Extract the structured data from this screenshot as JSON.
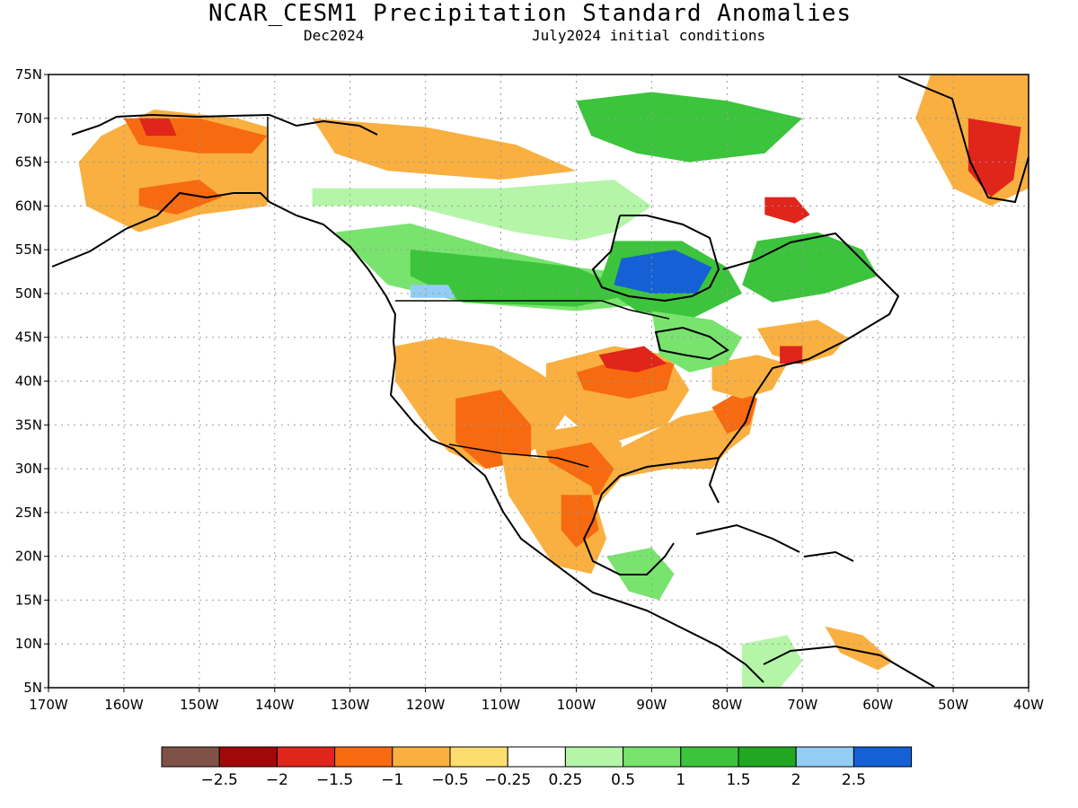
{
  "title": "NCAR_CESM1 Precipitation Standard Anomalies",
  "subtitle_left": "Dec2024",
  "subtitle_right": "July2024 initial conditions",
  "map": {
    "lon_range": [
      -170,
      -40
    ],
    "lat_range": [
      5,
      75
    ],
    "lat_ticks": [
      {
        "value": 75,
        "label": "75N"
      },
      {
        "value": 70,
        "label": "70N"
      },
      {
        "value": 65,
        "label": "65N"
      },
      {
        "value": 60,
        "label": "60N"
      },
      {
        "value": 55,
        "label": "55N"
      },
      {
        "value": 50,
        "label": "50N"
      },
      {
        "value": 45,
        "label": "45N"
      },
      {
        "value": 40,
        "label": "40N"
      },
      {
        "value": 35,
        "label": "35N"
      },
      {
        "value": 30,
        "label": "30N"
      },
      {
        "value": 25,
        "label": "25N"
      },
      {
        "value": 20,
        "label": "20N"
      },
      {
        "value": 15,
        "label": "15N"
      },
      {
        "value": 10,
        "label": "10N"
      },
      {
        "value": 5,
        "label": "5N"
      }
    ],
    "lon_ticks": [
      {
        "value": -170,
        "label": "170W"
      },
      {
        "value": -160,
        "label": "160W"
      },
      {
        "value": -150,
        "label": "150W"
      },
      {
        "value": -140,
        "label": "140W"
      },
      {
        "value": -130,
        "label": "130W"
      },
      {
        "value": -120,
        "label": "120W"
      },
      {
        "value": -110,
        "label": "110W"
      },
      {
        "value": -100,
        "label": "100W"
      },
      {
        "value": -90,
        "label": "90W"
      },
      {
        "value": -80,
        "label": "80W"
      },
      {
        "value": -70,
        "label": "70W"
      },
      {
        "value": -60,
        "label": "60W"
      },
      {
        "value": -50,
        "label": "50W"
      },
      {
        "value": -40,
        "label": "40W"
      }
    ],
    "anomaly_regions": [
      {
        "name": "alaska",
        "color": "#f9b040",
        "poly": [
          [
            -163,
            68
          ],
          [
            -156,
            71
          ],
          [
            -145,
            70
          ],
          [
            -141,
            69
          ],
          [
            -141,
            60
          ],
          [
            -150,
            59
          ],
          [
            -158,
            57
          ],
          [
            -165,
            60
          ],
          [
            -166,
            65
          ]
        ]
      },
      {
        "name": "alaska-core",
        "color": "#f86a0f",
        "poly": [
          [
            -160,
            70
          ],
          [
            -150,
            70
          ],
          [
            -141,
            68
          ],
          [
            -143,
            66
          ],
          [
            -150,
            66
          ],
          [
            -158,
            67
          ]
        ]
      },
      {
        "name": "alaska-red",
        "color": "#e0251b",
        "poly": [
          [
            -158,
            70
          ],
          [
            -154,
            70
          ],
          [
            -153,
            68
          ],
          [
            -157,
            68
          ]
        ]
      },
      {
        "name": "alaska-south",
        "color": "#f86a0f",
        "poly": [
          [
            -158,
            62
          ],
          [
            -150,
            63
          ],
          [
            -147,
            61
          ],
          [
            -153,
            59
          ],
          [
            -158,
            60
          ]
        ]
      },
      {
        "name": "yukon-white",
        "color": "#ffffff",
        "poly": [
          [
            -140,
            69
          ],
          [
            -130,
            68
          ],
          [
            -125,
            65
          ],
          [
            -130,
            62
          ],
          [
            -138,
            62
          ],
          [
            -141,
            65
          ]
        ]
      },
      {
        "name": "nw-canada",
        "color": "#f9b040",
        "poly": [
          [
            -135,
            70
          ],
          [
            -120,
            69
          ],
          [
            -108,
            67
          ],
          [
            -100,
            64
          ],
          [
            -110,
            63
          ],
          [
            -125,
            64
          ],
          [
            -132,
            66
          ]
        ]
      },
      {
        "name": "canada-light-green",
        "color": "#b4f5a8",
        "poly": [
          [
            -135,
            60
          ],
          [
            -122,
            60
          ],
          [
            -108,
            57
          ],
          [
            -100,
            56
          ],
          [
            -95,
            57
          ],
          [
            -90,
            60
          ],
          [
            -95,
            63
          ],
          [
            -110,
            62
          ],
          [
            -125,
            62
          ],
          [
            -135,
            62
          ]
        ]
      },
      {
        "name": "canada-green",
        "color": "#78e46e",
        "poly": [
          [
            -132,
            57
          ],
          [
            -122,
            58
          ],
          [
            -110,
            55
          ],
          [
            -100,
            53
          ],
          [
            -90,
            52
          ],
          [
            -85,
            55
          ],
          [
            -88,
            49
          ],
          [
            -100,
            48
          ],
          [
            -115,
            49
          ],
          [
            -125,
            51
          ]
        ]
      },
      {
        "name": "prairie-green",
        "color": "#3cc43c",
        "poly": [
          [
            -122,
            55
          ],
          [
            -110,
            54
          ],
          [
            -100,
            53
          ],
          [
            -92,
            50
          ],
          [
            -100,
            48.5
          ],
          [
            -115,
            49
          ],
          [
            -122,
            52
          ]
        ]
      },
      {
        "name": "arctic-green",
        "color": "#3cc43c",
        "poly": [
          [
            -100,
            72
          ],
          [
            -90,
            73
          ],
          [
            -80,
            72
          ],
          [
            -70,
            70
          ],
          [
            -75,
            66
          ],
          [
            -85,
            65
          ],
          [
            -92,
            66
          ],
          [
            -98,
            68
          ]
        ]
      },
      {
        "name": "ontario-green",
        "color": "#3cc43c",
        "poly": [
          [
            -95,
            56
          ],
          [
            -86,
            56
          ],
          [
            -80,
            53
          ],
          [
            -78,
            50
          ],
          [
            -85,
            47
          ],
          [
            -92,
            48
          ],
          [
            -97,
            51
          ]
        ]
      },
      {
        "name": "ontario-blue",
        "color": "#1560d4",
        "poly": [
          [
            -94,
            54
          ],
          [
            -87,
            55
          ],
          [
            -82,
            53
          ],
          [
            -84,
            50
          ],
          [
            -90,
            50
          ],
          [
            -95,
            51
          ]
        ]
      },
      {
        "name": "quebec-green",
        "color": "#3cc43c",
        "poly": [
          [
            -76,
            56
          ],
          [
            -68,
            57
          ],
          [
            -62,
            55
          ],
          [
            -60,
            52
          ],
          [
            -67,
            50
          ],
          [
            -74,
            49
          ],
          [
            -78,
            51
          ]
        ]
      },
      {
        "name": "quebec-red",
        "color": "#e0251b",
        "poly": [
          [
            -75,
            61
          ],
          [
            -71,
            61
          ],
          [
            -69,
            59
          ],
          [
            -71,
            58
          ],
          [
            -75,
            59
          ]
        ]
      },
      {
        "name": "bc-blue",
        "color": "#93cdf5",
        "poly": [
          [
            -122,
            51
          ],
          [
            -117,
            51
          ],
          [
            -116,
            49.5
          ],
          [
            -122,
            49.5
          ]
        ]
      },
      {
        "name": "greenland",
        "color": "#f9b040",
        "poly": [
          [
            -53,
            75
          ],
          [
            -40,
            75
          ],
          [
            -40,
            62
          ],
          [
            -45,
            60
          ],
          [
            -50,
            62
          ],
          [
            -55,
            70
          ]
        ]
      },
      {
        "name": "greenland-red",
        "color": "#e0251b",
        "poly": [
          [
            -48,
            70
          ],
          [
            -41,
            69
          ],
          [
            -42,
            63
          ],
          [
            -45,
            61
          ],
          [
            -48,
            64
          ]
        ]
      },
      {
        "name": "us-west",
        "color": "#f9b040",
        "poly": [
          [
            -124,
            44
          ],
          [
            -118,
            45
          ],
          [
            -111,
            44
          ],
          [
            -105,
            41
          ],
          [
            -100,
            38
          ],
          [
            -104,
            33
          ],
          [
            -108,
            31
          ],
          [
            -112,
            30
          ],
          [
            -117,
            32
          ],
          [
            -120,
            35
          ],
          [
            -124,
            40
          ]
        ]
      },
      {
        "name": "southwest-red",
        "color": "#e0251b",
        "poly": [
          [
            -114,
            36
          ],
          [
            -109,
            37
          ],
          [
            -106,
            34
          ],
          [
            -108,
            31
          ],
          [
            -112,
            31
          ],
          [
            -114,
            33
          ]
        ]
      },
      {
        "name": "southwest-orange",
        "color": "#f86a0f",
        "poly": [
          [
            -116,
            38
          ],
          [
            -110,
            39
          ],
          [
            -106,
            35
          ],
          [
            -106,
            31
          ],
          [
            -112,
            30
          ],
          [
            -116,
            33
          ]
        ]
      },
      {
        "name": "central-orange",
        "color": "#f9b040",
        "poly": [
          [
            -104,
            42
          ],
          [
            -95,
            44
          ],
          [
            -88,
            43
          ],
          [
            -85,
            39
          ],
          [
            -88,
            35
          ],
          [
            -95,
            33
          ],
          [
            -100,
            35
          ],
          [
            -104,
            38
          ]
        ]
      },
      {
        "name": "midwest-red",
        "color": "#f86a0f",
        "poly": [
          [
            -100,
            41
          ],
          [
            -92,
            43
          ],
          [
            -87,
            42
          ],
          [
            -88,
            39
          ],
          [
            -93,
            38
          ],
          [
            -99,
            39
          ]
        ]
      },
      {
        "name": "iowa-dark",
        "color": "#e0251b",
        "poly": [
          [
            -97,
            43
          ],
          [
            -91,
            44
          ],
          [
            -88,
            42
          ],
          [
            -92,
            41
          ],
          [
            -96,
            41.5
          ]
        ]
      },
      {
        "name": "texas-orange",
        "color": "#f9b040",
        "poly": [
          [
            -106,
            34
          ],
          [
            -99,
            35
          ],
          [
            -94,
            33
          ],
          [
            -94,
            29
          ],
          [
            -97,
            26
          ],
          [
            -100,
            25
          ],
          [
            -104,
            28
          ]
        ]
      },
      {
        "name": "texas-red",
        "color": "#f86a0f",
        "poly": [
          [
            -104,
            32
          ],
          [
            -98,
            33
          ],
          [
            -95,
            30
          ],
          [
            -97,
            27
          ],
          [
            -101,
            27
          ],
          [
            -103,
            29
          ]
        ]
      },
      {
        "name": "mexico",
        "color": "#f9b040",
        "poly": [
          [
            -110,
            32
          ],
          [
            -104,
            31
          ],
          [
            -98,
            28
          ],
          [
            -96,
            22
          ],
          [
            -98,
            18
          ],
          [
            -103,
            19
          ],
          [
            -106,
            23
          ],
          [
            -109,
            27
          ]
        ]
      },
      {
        "name": "mexico-orange",
        "color": "#f86a0f",
        "poly": [
          [
            -102,
            27
          ],
          [
            -98,
            27
          ],
          [
            -97,
            23
          ],
          [
            -100,
            21
          ],
          [
            -102,
            23
          ]
        ]
      },
      {
        "name": "se-orange",
        "color": "#f9b040",
        "poly": [
          [
            -95,
            32
          ],
          [
            -86,
            36
          ],
          [
            -80,
            37
          ],
          [
            -76,
            38
          ],
          [
            -77,
            34
          ],
          [
            -80,
            32
          ],
          [
            -82,
            30
          ],
          [
            -88,
            30
          ],
          [
            -94,
            29
          ]
        ]
      },
      {
        "name": "carolina-red",
        "color": "#f86a0f",
        "poly": [
          [
            -82,
            37
          ],
          [
            -78,
            39
          ],
          [
            -76,
            38
          ],
          [
            -77,
            35
          ],
          [
            -80,
            34
          ]
        ]
      },
      {
        "name": "appalachian-orange",
        "color": "#f9b040",
        "poly": [
          [
            -82,
            42
          ],
          [
            -76,
            43
          ],
          [
            -72,
            42
          ],
          [
            -74,
            39
          ],
          [
            -78,
            38
          ],
          [
            -82,
            39
          ]
        ]
      },
      {
        "name": "ne-orange",
        "color": "#f9b040",
        "poly": [
          [
            -76,
            46
          ],
          [
            -68,
            47
          ],
          [
            -64,
            45
          ],
          [
            -66,
            43
          ],
          [
            -70,
            42
          ],
          [
            -74,
            43
          ]
        ]
      },
      {
        "name": "maine-red",
        "color": "#e0251b",
        "poly": [
          [
            -73,
            44
          ],
          [
            -70,
            44
          ],
          [
            -70,
            42
          ],
          [
            -73,
            42
          ]
        ]
      },
      {
        "name": "great-lakes-green",
        "color": "#78e46e",
        "poly": [
          [
            -90,
            48
          ],
          [
            -82,
            47
          ],
          [
            -78,
            45
          ],
          [
            -80,
            42
          ],
          [
            -85,
            41
          ],
          [
            -89,
            43
          ]
        ]
      },
      {
        "name": "central-america-green",
        "color": "#78e46e",
        "poly": [
          [
            -96,
            20
          ],
          [
            -90,
            21
          ],
          [
            -87,
            18
          ],
          [
            -89,
            15
          ],
          [
            -93,
            16
          ]
        ]
      },
      {
        "name": "caribbean-orange",
        "color": "#f9b040",
        "poly": [
          [
            -67,
            12
          ],
          [
            -62,
            11
          ],
          [
            -58,
            8
          ],
          [
            -60,
            7
          ],
          [
            -65,
            9
          ]
        ]
      },
      {
        "name": "colombia-green",
        "color": "#b4f5a8",
        "poly": [
          [
            -78,
            10
          ],
          [
            -72,
            11
          ],
          [
            -70,
            8
          ],
          [
            -73,
            5
          ],
          [
            -78,
            5
          ]
        ]
      }
    ]
  },
  "colorbar": {
    "colors": [
      "#7e5246",
      "#a30808",
      "#e0251b",
      "#f86a0f",
      "#f9b040",
      "#fbde70",
      "#ffffff",
      "#b4f5a8",
      "#78e46e",
      "#3cc43c",
      "#21a722",
      "#93cdf5",
      "#1560d4"
    ],
    "labels": [
      "−2.5",
      "−2",
      "−1.5",
      "−1",
      "−0.5",
      "−0.25",
      "0.25",
      "0.5",
      "1",
      "1.5",
      "2",
      "2.5"
    ]
  }
}
